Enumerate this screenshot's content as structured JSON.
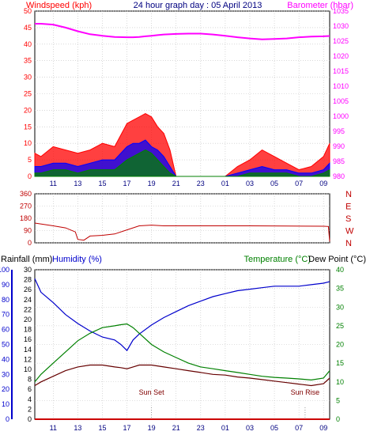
{
  "chart_data": [
    {
      "type": "line",
      "panel": "wind-barometer",
      "title": "24 hour graph day : 05 April 2013",
      "ylabel": "Windspeed (kph)",
      "y2label": "Barometer (hbar)",
      "ylim": [
        0,
        50
      ],
      "y2lim": [
        980,
        1035
      ],
      "yticks": [
        "0",
        "5",
        "10",
        "15",
        "20",
        "25",
        "30",
        "35",
        "40",
        "45",
        "50"
      ],
      "y2ticks": [
        "980",
        "985",
        "990",
        "995",
        "1000",
        "1005",
        "1010",
        "1015",
        "1020",
        "1025",
        "1030",
        "1035"
      ],
      "xticks": [
        "11",
        "13",
        "15",
        "17",
        "19",
        "21",
        "23",
        "01",
        "03",
        "05",
        "07",
        "09"
      ],
      "x": [
        9.5,
        10,
        11,
        12,
        13,
        14,
        15,
        16,
        17,
        17.5,
        18,
        18.5,
        19,
        19.5,
        20,
        20.5,
        21,
        22,
        23,
        24,
        25,
        26,
        27,
        28,
        29,
        30,
        31,
        32,
        33,
        33.5
      ],
      "series": [
        {
          "name": "Barometer",
          "color": "#ff00ff",
          "axis": "right",
          "values": [
            1030.8,
            1030.8,
            1030.5,
            1029.5,
            1028.3,
            1027.3,
            1026.8,
            1026.4,
            1026.3,
            1026.3,
            1026.4,
            1026.6,
            1026.8,
            1027.0,
            1027.2,
            1027.3,
            1027.4,
            1027.5,
            1027.5,
            1027.2,
            1026.8,
            1026.3,
            1025.9,
            1025.6,
            1025.7,
            1025.9,
            1026.3,
            1026.5,
            1026.6,
            1026.7
          ]
        },
        {
          "name": "Gust",
          "color": "#ff0000",
          "axis": "left",
          "values": [
            7,
            6,
            9,
            8,
            7,
            8,
            10,
            9,
            16,
            17,
            18,
            19,
            18,
            15,
            13,
            8,
            0,
            0,
            0,
            0,
            0,
            3,
            5,
            8,
            6,
            4,
            2,
            3,
            6,
            10
          ]
        },
        {
          "name": "Wind",
          "color": "#0000ff",
          "axis": "left",
          "values": [
            3,
            3,
            4,
            4,
            3,
            4,
            5,
            5,
            9,
            10,
            10,
            11,
            9,
            8,
            6,
            3,
            0,
            0,
            0,
            0,
            0,
            1,
            2,
            3,
            2,
            2,
            1,
            1,
            2,
            4
          ]
        },
        {
          "name": "Average",
          "color": "#008000",
          "axis": "left",
          "values": [
            1,
            1,
            2,
            2,
            1,
            2,
            2,
            2,
            5,
            6,
            7,
            8,
            7,
            5,
            3,
            1,
            0,
            0,
            0,
            0,
            0,
            0,
            1,
            1,
            1,
            1,
            0,
            0,
            1,
            2
          ]
        }
      ]
    },
    {
      "type": "line",
      "panel": "wind-direction",
      "ylim": [
        0,
        360
      ],
      "yticks": [
        "0",
        "90",
        "180",
        "270",
        "360"
      ],
      "right_labels": [
        "N",
        "W",
        "S",
        "E",
        "N"
      ],
      "x": [
        9.5,
        11,
        12,
        12.8,
        13,
        13.5,
        14,
        15,
        16,
        17,
        18,
        19,
        20,
        21,
        24,
        27,
        30,
        33,
        33.4,
        33.5
      ],
      "series": [
        {
          "name": "Direction",
          "color": "#c00000",
          "values": [
            145,
            125,
            110,
            80,
            25,
            20,
            50,
            55,
            65,
            95,
            125,
            130,
            125,
            125,
            125,
            125,
            123,
            122,
            120,
            10
          ]
        }
      ]
    },
    {
      "type": "line",
      "panel": "temp-humidity-rain",
      "ylabel": "Rainfall (mm)",
      "ylabel2": "Humidity (%)",
      "y2label": "Temperature (°C)",
      "y3label": "Dew Point (°C)",
      "ylim_rain": [
        0,
        30
      ],
      "ylim_hum": [
        0,
        100
      ],
      "ylim_temp": [
        0,
        40
      ],
      "yticks_rain": [
        "0",
        "2",
        "4",
        "6",
        "8",
        "10",
        "12",
        "14",
        "16",
        "18",
        "20",
        "22",
        "24",
        "26",
        "28",
        "30"
      ],
      "yticks_hum": [
        "0",
        "10",
        "20",
        "30",
        "40",
        "50",
        "60",
        "70",
        "80",
        "90",
        "100"
      ],
      "yticks_temp": [
        "0",
        "5",
        "10",
        "15",
        "20",
        "25",
        "30",
        "35",
        "40"
      ],
      "annotations": [
        "Sun Set",
        "Sun Rise"
      ],
      "x": [
        9.5,
        10,
        11,
        12,
        13,
        14,
        15,
        16,
        16.5,
        17,
        17.5,
        18,
        19,
        20,
        21,
        22,
        23,
        24,
        25,
        26,
        27,
        28,
        29,
        30,
        31,
        32,
        33,
        33.5
      ],
      "series": [
        {
          "name": "Humidity",
          "color": "#0000cc",
          "axis": "hum",
          "values": [
            94,
            85,
            78,
            70,
            64,
            59,
            55,
            53,
            50,
            46,
            53,
            57,
            63,
            68,
            72,
            76,
            79,
            82,
            84,
            86,
            87,
            88,
            89,
            89,
            89,
            90,
            91,
            92
          ]
        },
        {
          "name": "Temperature",
          "color": "#008000",
          "axis": "temp",
          "values": [
            10,
            12,
            15,
            18,
            21,
            23,
            24.5,
            25,
            25.3,
            25.5,
            24.5,
            23,
            20,
            18,
            16.5,
            15,
            14,
            13.5,
            13,
            12.5,
            12,
            11.5,
            11.2,
            11,
            10.8,
            10.5,
            11,
            13
          ]
        },
        {
          "name": "Dew Point",
          "color": "#660000",
          "axis": "temp",
          "values": [
            9,
            10,
            11.5,
            13,
            14,
            14.5,
            14.5,
            14,
            13.8,
            13.5,
            14,
            14.5,
            14.5,
            14,
            13.5,
            13,
            12.5,
            12,
            11.8,
            11.3,
            11,
            10.6,
            10.2,
            9.8,
            9.4,
            9,
            9.5,
            11
          ]
        },
        {
          "name": "Rainfall",
          "color": "#cc0000",
          "axis": "rain",
          "values": [
            0,
            0,
            0,
            0,
            0,
            0,
            0,
            0,
            0,
            0,
            0,
            0,
            0,
            0,
            0,
            0,
            0,
            0,
            0,
            0,
            0,
            0,
            0,
            0,
            0,
            0,
            0,
            0
          ]
        }
      ]
    }
  ]
}
